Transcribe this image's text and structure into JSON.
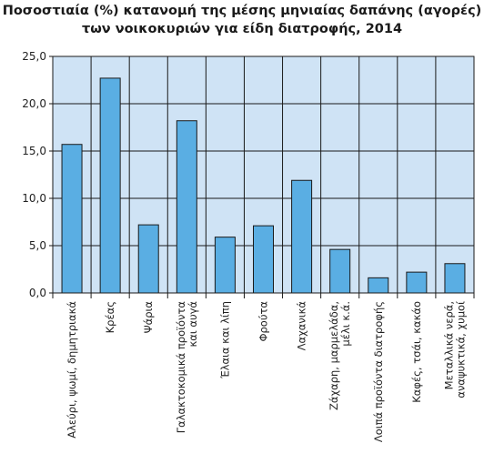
{
  "chart_data": {
    "type": "bar",
    "title": [
      "Ποσοστιαία (%) κατανομή της μέσης μηνιαίας δαπάνης (αγορές)",
      "των νοικοκυριών για είδη διατροφής, 2014"
    ],
    "xlabel": "",
    "ylabel": "",
    "ylim": [
      0,
      25
    ],
    "y_ticks": [
      "0,0",
      "5,0",
      "10,0",
      "15,0",
      "20,0",
      "25,0"
    ],
    "grid": true,
    "categories": [
      [
        "Αλεύρι, ψωμί, δημητριακά"
      ],
      [
        "Κρέας"
      ],
      [
        "Ψάρια"
      ],
      [
        "Γαλακτοκομικά προϊόντα",
        "και αυγά"
      ],
      [
        "Έλαια και λίπη"
      ],
      [
        "Φρούτα"
      ],
      [
        "Λαχανικά"
      ],
      [
        "Ζάχαρη, μαρμελάδα,",
        "μέλι κ.ά."
      ],
      [
        "Λοιπά προϊόντα διατροφής"
      ],
      [
        "Καφές, τσάι, κακάο"
      ],
      [
        "Μεταλλικά νερά,",
        "αναψυκτικά, χυμοί"
      ]
    ],
    "values": [
      15.7,
      22.7,
      7.2,
      18.2,
      5.9,
      7.1,
      11.9,
      4.6,
      1.6,
      2.2,
      3.1
    ],
    "colors": {
      "bar": "#5aaee3",
      "bar_stroke": "#1a1a1a",
      "plot_bg": "#cfe3f5",
      "grid": "#1a1a1a",
      "axis": "#1a1a1a"
    }
  }
}
